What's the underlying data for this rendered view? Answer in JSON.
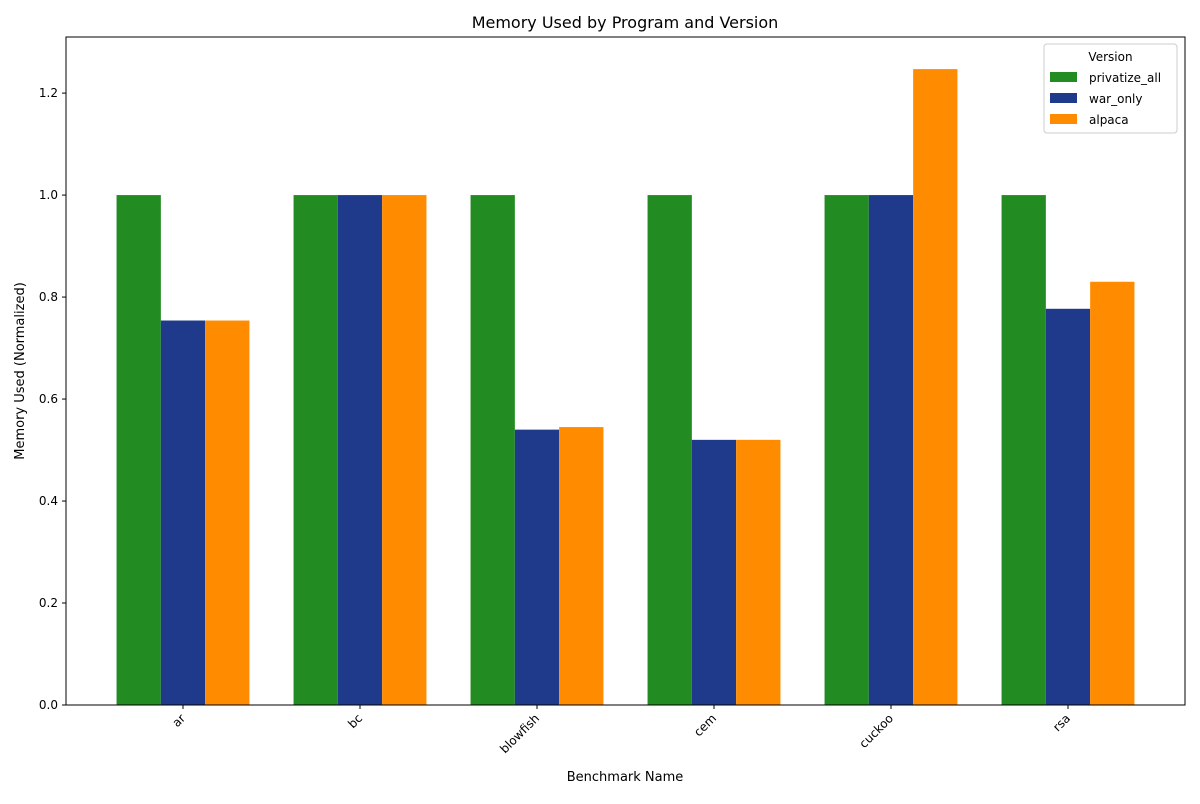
{
  "chart_data": {
    "type": "bar",
    "title": "Memory Used by Program and Version",
    "xlabel": "Benchmark Name",
    "ylabel": "Memory Used (Normalized)",
    "categories": [
      "ar",
      "bc",
      "blowfish",
      "cem",
      "cuckoo",
      "rsa"
    ],
    "series": [
      {
        "name": "privatize_all",
        "color": "#228b22",
        "values": [
          1.0,
          1.0,
          1.0,
          1.0,
          1.0,
          1.0
        ]
      },
      {
        "name": "war_only",
        "color": "#1f3a8a",
        "values": [
          0.754,
          1.0,
          0.54,
          0.52,
          1.0,
          0.777
        ]
      },
      {
        "name": "alpaca",
        "color": "#ff8c00",
        "values": [
          0.754,
          1.0,
          0.545,
          0.52,
          1.247,
          0.83
        ]
      }
    ],
    "ylim": [
      0,
      1.31
    ],
    "yticks": [
      0.0,
      0.2,
      0.4,
      0.6,
      0.8,
      1.0,
      1.2
    ],
    "ytick_labels": [
      "0.0",
      "0.2",
      "0.4",
      "0.6",
      "0.8",
      "1.0",
      "1.2"
    ],
    "grid": false,
    "legend": {
      "title": "Version",
      "placement": "top-right"
    },
    "xtick_rotation": 45
  }
}
